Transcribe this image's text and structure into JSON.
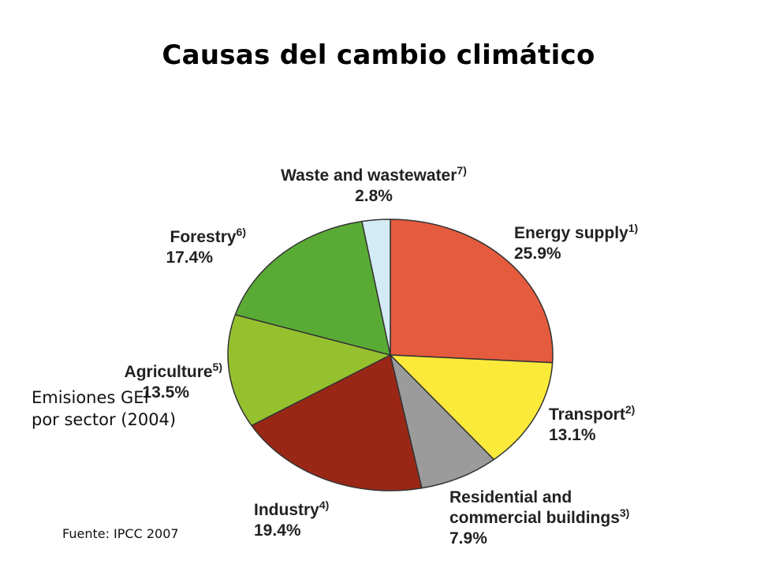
{
  "title": "Causas del cambio climático",
  "caption": "Emisiones GEI por sector (2004)",
  "source": "Fuente: IPCC 2007",
  "colors": {
    "slice_stroke": "#333333",
    "energy": "#e55b3d",
    "transport": "#fbea3a",
    "residential": "#9b9b9b",
    "industry": "#9a2716",
    "agriculture": "#96c12f",
    "forestry": "#5aab35",
    "waste": "#d3ebf5"
  },
  "chart_data": {
    "type": "pie",
    "title": "",
    "start": "12 o'clock, clockwise",
    "slices": [
      {
        "key": "energy",
        "label_lines": [
          "Energy supply"
        ],
        "sup": "1)",
        "value": 25.9,
        "value_label": "25.9%"
      },
      {
        "key": "transport",
        "label_lines": [
          "Transport"
        ],
        "sup": "2)",
        "value": 13.1,
        "value_label": "13.1%"
      },
      {
        "key": "residential",
        "label_lines": [
          "Residential and",
          "commercial buildings"
        ],
        "sup": "3)",
        "value": 7.9,
        "value_label": "7.9%"
      },
      {
        "key": "industry",
        "label_lines": [
          "Industry"
        ],
        "sup": "4)",
        "value": 19.4,
        "value_label": "19.4%"
      },
      {
        "key": "agriculture",
        "label_lines": [
          "Agriculture"
        ],
        "sup": "5)",
        "value": 13.5,
        "value_label": "13.5%"
      },
      {
        "key": "forestry",
        "label_lines": [
          "Forestry"
        ],
        "sup": "6)",
        "value": 17.4,
        "value_label": "17.4%"
      },
      {
        "key": "waste",
        "label_lines": [
          "Waste and wastewater"
        ],
        "sup": "7)",
        "value": 2.8,
        "value_label": "2.8%"
      }
    ]
  }
}
